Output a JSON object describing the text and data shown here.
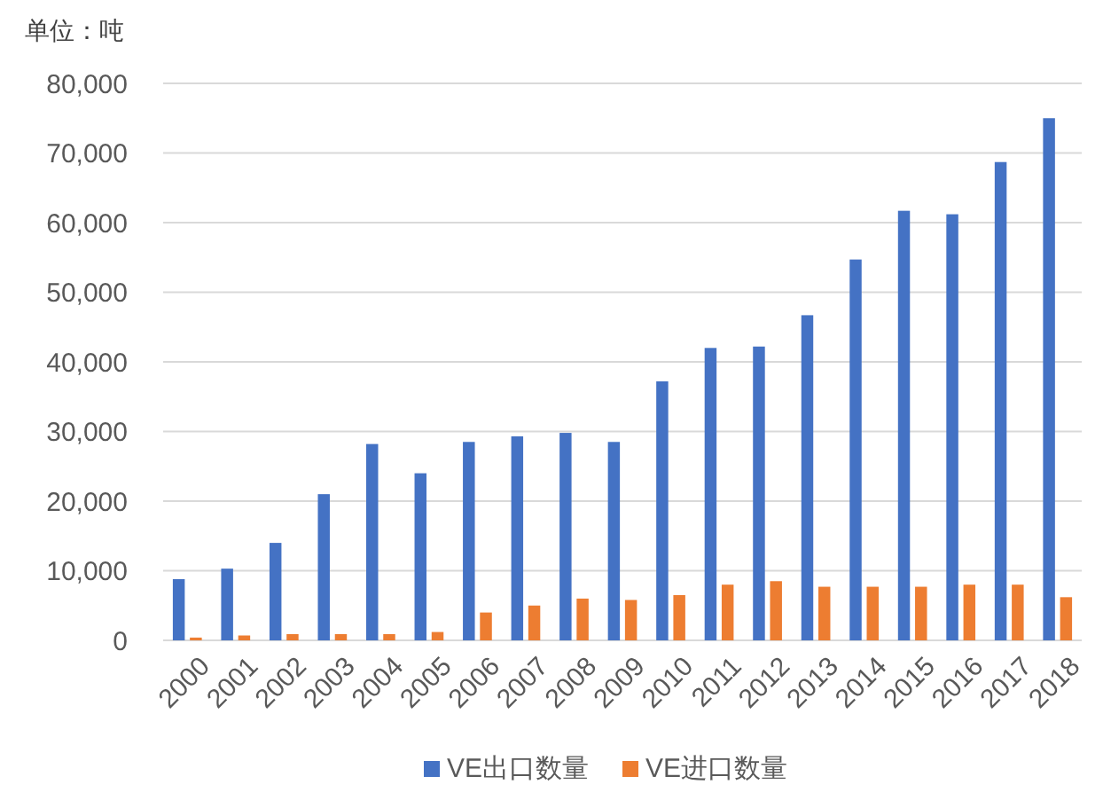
{
  "chart_data": {
    "type": "bar",
    "ylabel": "单位：吨",
    "categories": [
      "2000",
      "2001",
      "2002",
      "2003",
      "2004",
      "2005",
      "2006",
      "2007",
      "2008",
      "2009",
      "2010",
      "2011",
      "2012",
      "2013",
      "2014",
      "2015",
      "2016",
      "2017",
      "2018"
    ],
    "series": [
      {
        "name": "VE出口数量",
        "color": "#4472c4",
        "values": [
          8800,
          10300,
          14000,
          21000,
          28200,
          24000,
          28500,
          29300,
          29800,
          28500,
          37200,
          42000,
          42200,
          46700,
          54700,
          61700,
          61200,
          68700,
          75000
        ]
      },
      {
        "name": "VE进口数量",
        "color": "#ed7d31",
        "values": [
          400,
          700,
          900,
          900,
          900,
          1200,
          4000,
          5000,
          6000,
          5800,
          6500,
          8000,
          8500,
          7700,
          7700,
          7700,
          8000,
          8000,
          6200
        ]
      }
    ],
    "ylim": [
      0,
      80000
    ],
    "yticks": [
      {
        "value": 0,
        "label": "0"
      },
      {
        "value": 10000,
        "label": "10,000"
      },
      {
        "value": 20000,
        "label": "20,000"
      },
      {
        "value": 30000,
        "label": "30,000"
      },
      {
        "value": 40000,
        "label": "40,000"
      },
      {
        "value": 50000,
        "label": "50,000"
      },
      {
        "value": 60000,
        "label": "60,000"
      },
      {
        "value": 70000,
        "label": "70,000"
      },
      {
        "value": 80000,
        "label": "80,000"
      }
    ],
    "grid": "y",
    "legend": "bottom"
  }
}
